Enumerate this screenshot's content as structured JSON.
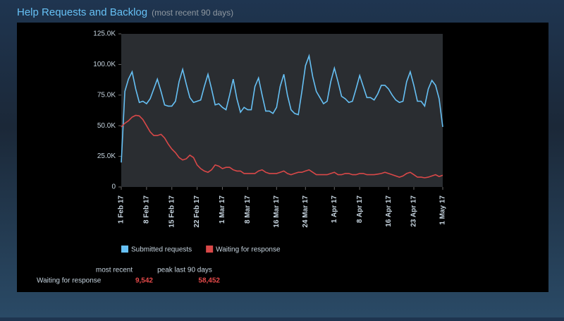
{
  "header": {
    "title": "Help Requests and Backlog",
    "subtitle": "(most recent 90 days)"
  },
  "chart_data": {
    "type": "line",
    "x": [
      "2017-02-01",
      "2017-02-02",
      "2017-02-03",
      "2017-02-04",
      "2017-02-05",
      "2017-02-06",
      "2017-02-07",
      "2017-02-08",
      "2017-02-09",
      "2017-02-10",
      "2017-02-11",
      "2017-02-12",
      "2017-02-13",
      "2017-02-14",
      "2017-02-15",
      "2017-02-16",
      "2017-02-17",
      "2017-02-18",
      "2017-02-19",
      "2017-02-20",
      "2017-02-21",
      "2017-02-22",
      "2017-02-23",
      "2017-02-24",
      "2017-02-25",
      "2017-02-26",
      "2017-02-27",
      "2017-02-28",
      "2017-03-01",
      "2017-03-02",
      "2017-03-03",
      "2017-03-04",
      "2017-03-05",
      "2017-03-06",
      "2017-03-07",
      "2017-03-08",
      "2017-03-09",
      "2017-03-10",
      "2017-03-11",
      "2017-03-12",
      "2017-03-13",
      "2017-03-14",
      "2017-03-15",
      "2017-03-16",
      "2017-03-17",
      "2017-03-18",
      "2017-03-19",
      "2017-03-20",
      "2017-03-21",
      "2017-03-22",
      "2017-03-23",
      "2017-03-24",
      "2017-03-25",
      "2017-03-26",
      "2017-03-27",
      "2017-03-28",
      "2017-03-29",
      "2017-03-30",
      "2017-03-31",
      "2017-04-01",
      "2017-04-02",
      "2017-04-03",
      "2017-04-04",
      "2017-04-05",
      "2017-04-06",
      "2017-04-07",
      "2017-04-08",
      "2017-04-09",
      "2017-04-10",
      "2017-04-11",
      "2017-04-12",
      "2017-04-13",
      "2017-04-14",
      "2017-04-15",
      "2017-04-16",
      "2017-04-17",
      "2017-04-18",
      "2017-04-19",
      "2017-04-20",
      "2017-04-21",
      "2017-04-22",
      "2017-04-23",
      "2017-04-24",
      "2017-04-25",
      "2017-04-26",
      "2017-04-27",
      "2017-04-28",
      "2017-04-29",
      "2017-04-30",
      "2017-05-01"
    ],
    "series": [
      {
        "name": "Submitted requests",
        "color": "#66c0f4",
        "values": [
          20000,
          78000,
          88000,
          94000,
          80000,
          69000,
          70000,
          68000,
          72000,
          80000,
          88000,
          78000,
          67000,
          66000,
          66000,
          70000,
          86000,
          96000,
          84000,
          73000,
          69000,
          70000,
          71000,
          82000,
          92000,
          80000,
          67000,
          68000,
          65000,
          63000,
          75000,
          88000,
          72000,
          61000,
          65000,
          63000,
          63000,
          82000,
          89000,
          75000,
          62000,
          62000,
          60000,
          65000,
          82000,
          92000,
          75000,
          63000,
          60000,
          59000,
          78000,
          99000,
          107000,
          90000,
          78000,
          73000,
          68000,
          70000,
          86000,
          97000,
          86000,
          74000,
          72000,
          69000,
          70000,
          80000,
          91000,
          82000,
          73000,
          73000,
          71000,
          76000,
          83000,
          83000,
          80000,
          75000,
          71000,
          69000,
          70000,
          86000,
          94000,
          83000,
          70000,
          70000,
          66000,
          80000,
          87000,
          83000,
          72000,
          49000
        ]
      },
      {
        "name": "Waiting for response",
        "color": "#d94848",
        "values": [
          49000,
          52000,
          54000,
          57000,
          58452,
          58000,
          55000,
          50000,
          45000,
          42000,
          42000,
          43000,
          40000,
          35000,
          31000,
          28000,
          24000,
          22000,
          23000,
          26000,
          24000,
          18000,
          15000,
          13000,
          12000,
          14000,
          18000,
          17000,
          15000,
          16000,
          16000,
          14000,
          13000,
          13000,
          11000,
          11000,
          11000,
          11000,
          13000,
          14000,
          12000,
          11000,
          11000,
          11000,
          12000,
          13000,
          11000,
          10000,
          11000,
          12000,
          12000,
          13000,
          14000,
          12000,
          10000,
          10000,
          10000,
          10000,
          11000,
          12000,
          10000,
          10000,
          11000,
          11000,
          10000,
          10000,
          11000,
          11000,
          10000,
          10000,
          10000,
          10500,
          11000,
          12000,
          11000,
          10000,
          9000,
          8000,
          9000,
          11000,
          12000,
          10000,
          8000,
          8000,
          7500,
          8000,
          9000,
          10000,
          8500,
          9542
        ]
      }
    ],
    "xlim": [
      "2017-02-01",
      "2017-05-01"
    ],
    "xticks": [
      {
        "value": "2017-02-01",
        "label": "1 Feb 17"
      },
      {
        "value": "2017-02-08",
        "label": "8 Feb 17"
      },
      {
        "value": "2017-02-15",
        "label": "15 Feb 17"
      },
      {
        "value": "2017-02-22",
        "label": "22 Feb 17"
      },
      {
        "value": "2017-03-01",
        "label": "1 Mar 17"
      },
      {
        "value": "2017-03-08",
        "label": "8 Mar 17"
      },
      {
        "value": "2017-03-16",
        "label": "16 Mar 17"
      },
      {
        "value": "2017-03-24",
        "label": "24 Mar 17"
      },
      {
        "value": "2017-04-01",
        "label": "1 Apr 17"
      },
      {
        "value": "2017-04-08",
        "label": "8 Apr 17"
      },
      {
        "value": "2017-04-16",
        "label": "16 Apr 17"
      },
      {
        "value": "2017-04-23",
        "label": "23 Apr 17"
      },
      {
        "value": "2017-05-01",
        "label": "1 May 17"
      }
    ],
    "ylim": [
      0,
      125000
    ],
    "yticks": [
      0,
      {
        "value": 25000,
        "label": "25.0K"
      },
      {
        "value": 50000,
        "label": "50.0K"
      },
      {
        "value": 75000,
        "label": "75.0K"
      },
      {
        "value": 100000,
        "label": "100.0K"
      },
      {
        "value": 125000,
        "label": "125.0K"
      }
    ]
  },
  "stats": {
    "columns": [
      "most recent",
      "peak last 90 days"
    ],
    "row_label": "Waiting for response",
    "values": [
      "9,542",
      "58,452"
    ]
  }
}
